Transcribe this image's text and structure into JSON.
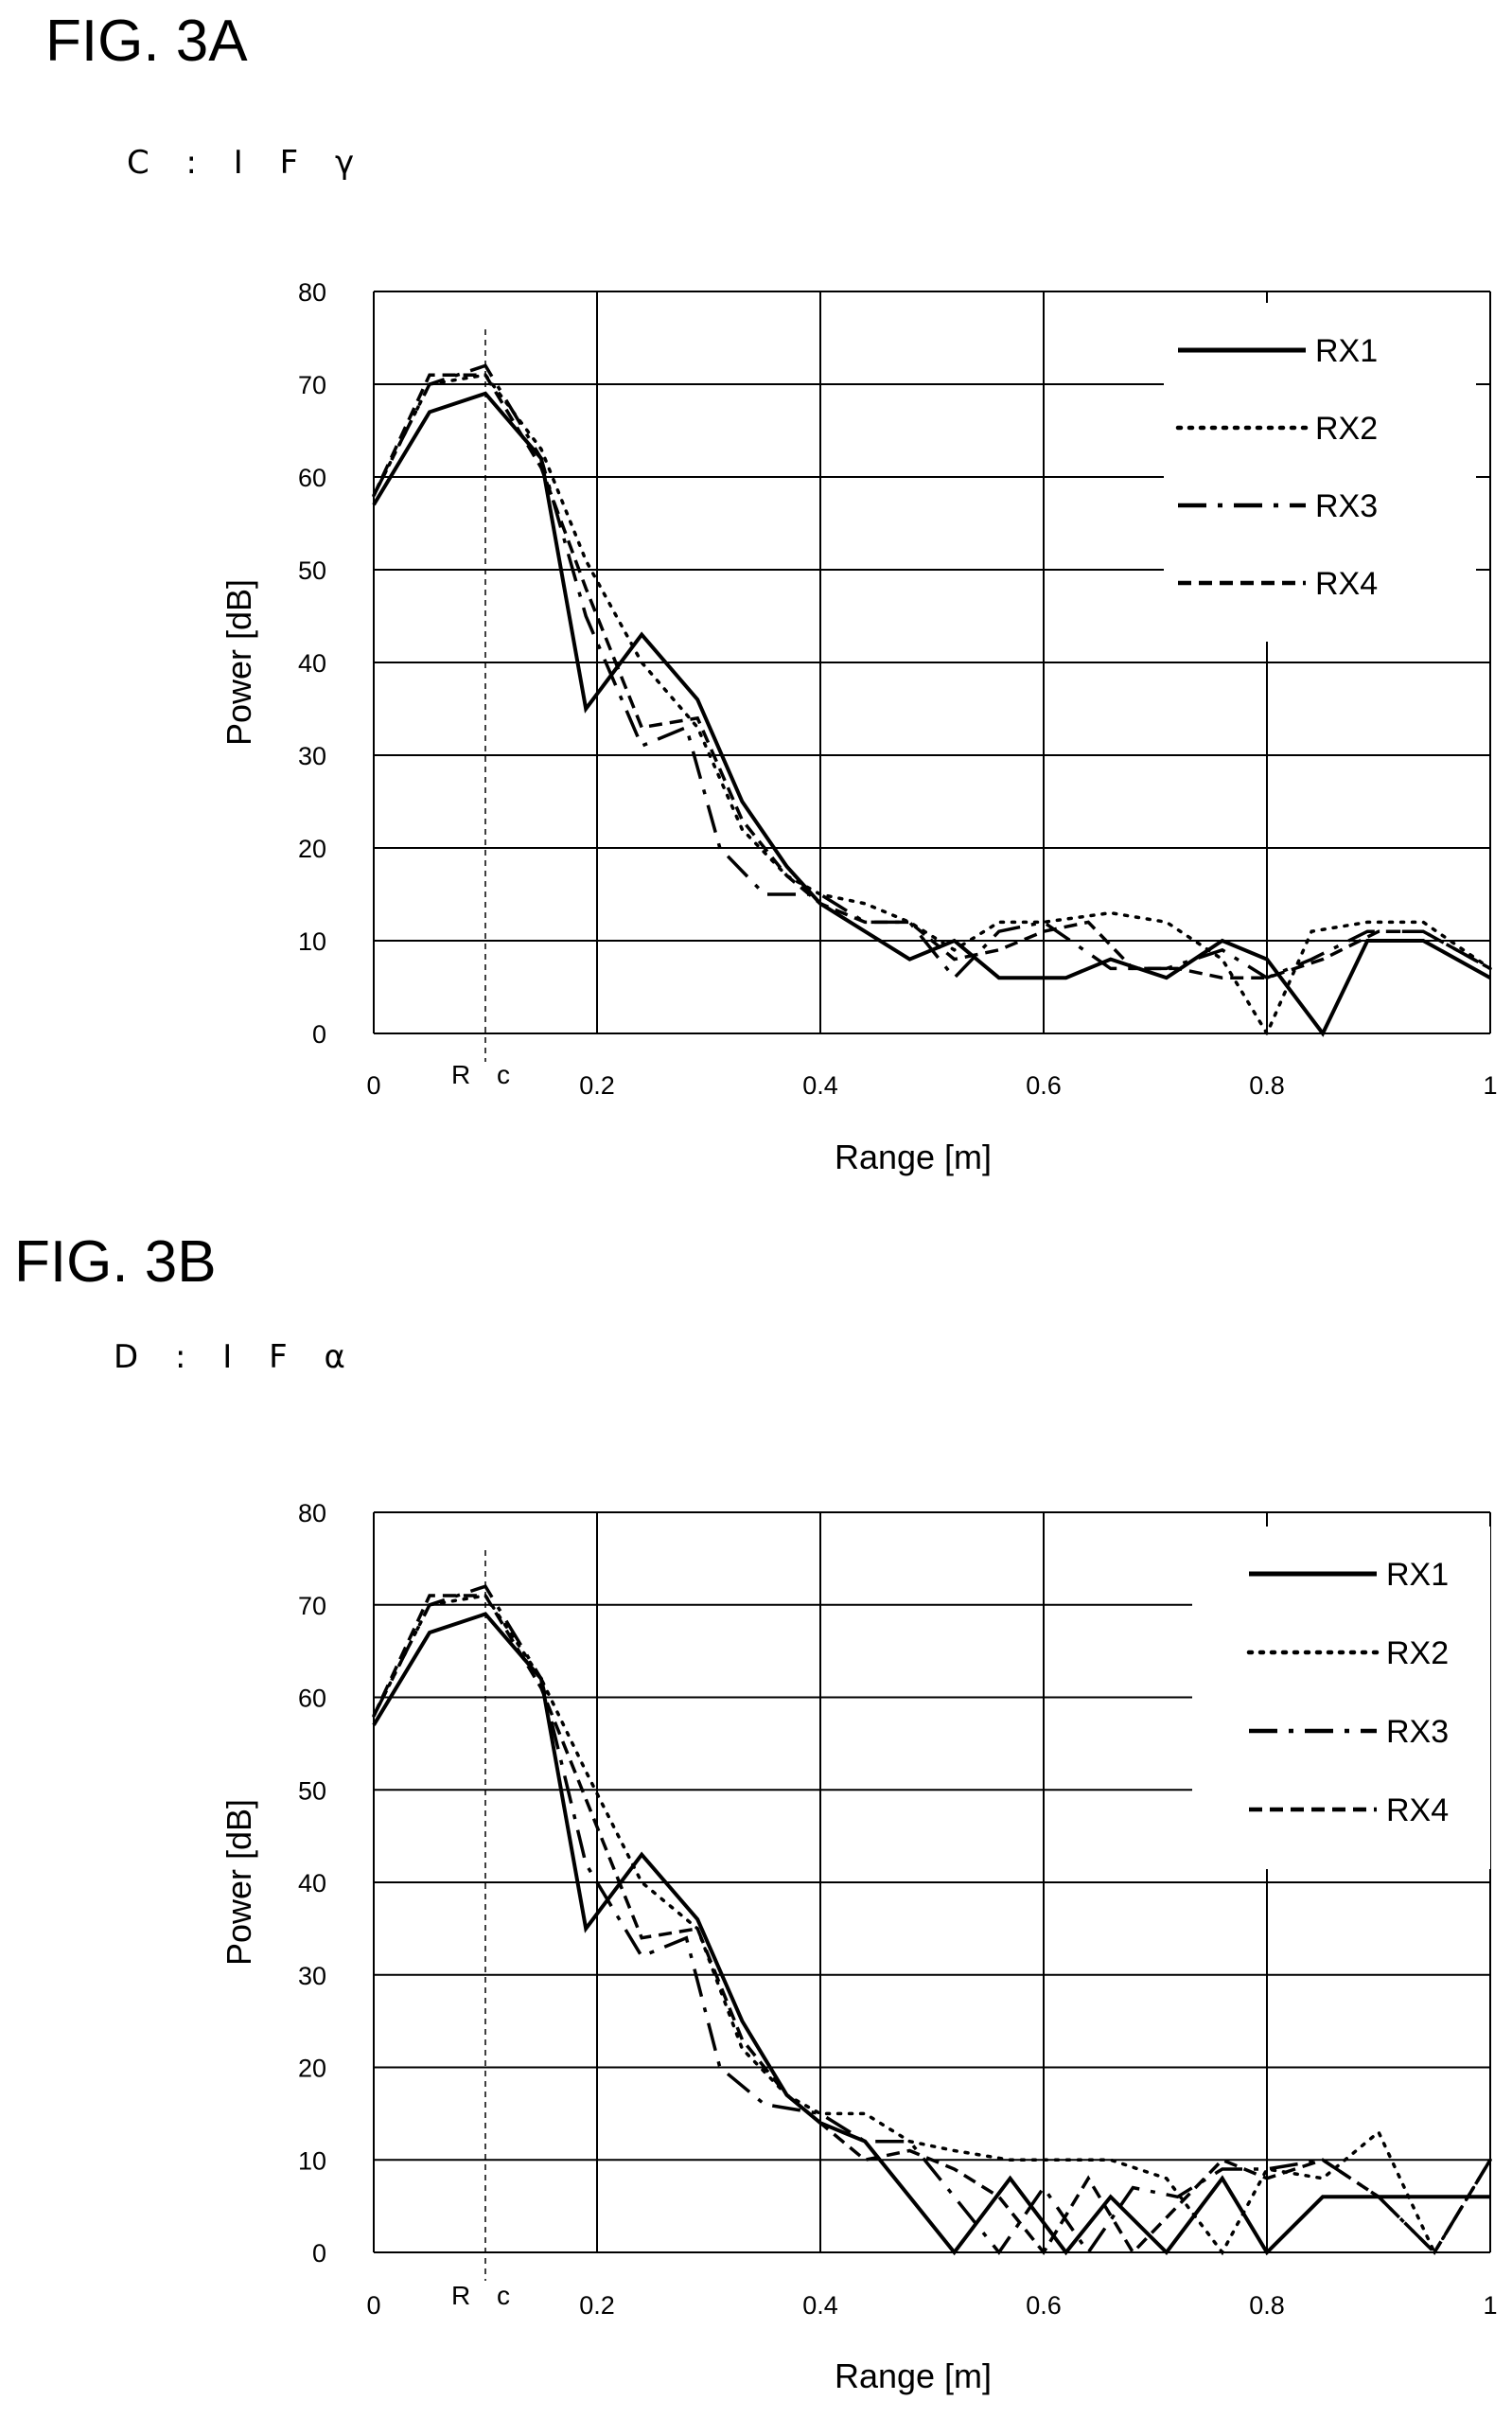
{
  "figures": [
    {
      "title": "FIG. 3A",
      "subtitle": "C : I F γ",
      "chart_data": {
        "type": "line",
        "xlabel": "Range [m]",
        "ylabel": "Power [dB]",
        "xlim": [
          0,
          1
        ],
        "ylim": [
          0,
          80
        ],
        "x_ticks": [
          "0",
          "0.2",
          "0.4",
          "0.6",
          "0.8",
          "1"
        ],
        "y_ticks": [
          "0",
          "10",
          "20",
          "30",
          "40",
          "50",
          "60",
          "70",
          "80"
        ],
        "annotation": "R c",
        "annotation_x": 0.1,
        "legend_position": "top-right",
        "grid": true,
        "series": [
          {
            "name": "RX1",
            "style": "solid",
            "x": [
              0,
              0.05,
              0.1,
              0.15,
              0.19,
              0.24,
              0.29,
              0.33,
              0.37,
              0.4,
              0.44,
              0.48,
              0.52,
              0.56,
              0.62,
              0.66,
              0.71,
              0.76,
              0.8,
              0.85,
              0.89,
              0.94,
              1.0
            ],
            "y": [
              57,
              67,
              69,
              62,
              35,
              43,
              36,
              25,
              18,
              14,
              11,
              8,
              10,
              6,
              6,
              8,
              6,
              10,
              8,
              0,
              10,
              10,
              6
            ]
          },
          {
            "name": "RX2",
            "style": "dotted",
            "x": [
              0,
              0.05,
              0.1,
              0.15,
              0.19,
              0.24,
              0.29,
              0.33,
              0.37,
              0.4,
              0.44,
              0.48,
              0.52,
              0.56,
              0.6,
              0.66,
              0.71,
              0.76,
              0.8,
              0.84,
              0.89,
              0.94,
              1.0
            ],
            "y": [
              58,
              70,
              71,
              63,
              51,
              40,
              33,
              22,
              17,
              15,
              14,
              12,
              9,
              12,
              12,
              13,
              12,
              8,
              0,
              11,
              12,
              12,
              7
            ]
          },
          {
            "name": "RX3",
            "style": "dashdot",
            "x": [
              0,
              0.05,
              0.1,
              0.15,
              0.19,
              0.24,
              0.28,
              0.31,
              0.35,
              0.4,
              0.44,
              0.48,
              0.52,
              0.56,
              0.6,
              0.66,
              0.71,
              0.76,
              0.8,
              0.84,
              0.89,
              0.94,
              1.0
            ],
            "y": [
              58,
              70,
              72,
              62,
              45,
              31,
              33,
              20,
              15,
              15,
              12,
              12,
              6,
              11,
              12,
              7,
              7,
              9,
              6,
              8,
              11,
              11,
              7
            ]
          },
          {
            "name": "RX4",
            "style": "dashed",
            "x": [
              0,
              0.05,
              0.1,
              0.15,
              0.19,
              0.24,
              0.29,
              0.33,
              0.37,
              0.4,
              0.44,
              0.48,
              0.52,
              0.56,
              0.6,
              0.64,
              0.68,
              0.72,
              0.76,
              0.8,
              0.85,
              0.9,
              0.94,
              1.0
            ],
            "y": [
              58,
              71,
              71,
              61,
              48,
              33,
              34,
              23,
              17,
              14,
              12,
              12,
              8,
              9,
              11,
              12,
              7,
              7,
              6,
              6,
              8,
              11,
              11,
              7
            ]
          }
        ]
      }
    },
    {
      "title": "FIG. 3B",
      "subtitle": "D : I F α",
      "chart_data": {
        "type": "line",
        "xlabel": "Range [m]",
        "ylabel": "Power [dB]",
        "xlim": [
          0,
          1
        ],
        "ylim": [
          0,
          80
        ],
        "x_ticks": [
          "0",
          "0.2",
          "0.4",
          "0.6",
          "0.8",
          "1"
        ],
        "y_ticks": [
          "0",
          "10",
          "20",
          "30",
          "40",
          "50",
          "60",
          "70",
          "80"
        ],
        "annotation": "R c",
        "annotation_x": 0.1,
        "legend_position": "top-right",
        "grid": true,
        "series": [
          {
            "name": "RX1",
            "style": "solid",
            "x": [
              0,
              0.05,
              0.1,
              0.15,
              0.19,
              0.24,
              0.29,
              0.33,
              0.37,
              0.4,
              0.44,
              0.48,
              0.52,
              0.57,
              0.62,
              0.66,
              0.71,
              0.76,
              0.8,
              0.85,
              0.9,
              0.95,
              1.0
            ],
            "y": [
              57,
              67,
              69,
              62,
              35,
              43,
              36,
              25,
              17,
              14,
              12,
              6,
              0,
              8,
              0,
              6,
              0,
              8,
              0,
              6,
              6,
              6,
              6
            ]
          },
          {
            "name": "RX2",
            "style": "dotted",
            "x": [
              0,
              0.05,
              0.1,
              0.15,
              0.19,
              0.24,
              0.29,
              0.33,
              0.37,
              0.4,
              0.44,
              0.48,
              0.52,
              0.57,
              0.62,
              0.66,
              0.71,
              0.76,
              0.8,
              0.85,
              0.9,
              0.95,
              1.0
            ],
            "y": [
              58,
              70,
              71,
              62,
              52,
              40,
              35,
              22,
              17,
              15,
              15,
              12,
              11,
              10,
              10,
              10,
              8,
              0,
              9,
              8,
              13,
              0,
              10
            ]
          },
          {
            "name": "RX3",
            "style": "dashdot",
            "x": [
              0,
              0.05,
              0.1,
              0.15,
              0.19,
              0.24,
              0.28,
              0.31,
              0.35,
              0.4,
              0.44,
              0.48,
              0.52,
              0.56,
              0.6,
              0.64,
              0.68,
              0.72,
              0.76,
              0.8,
              0.85,
              0.9,
              0.95,
              1.0
            ],
            "y": [
              58,
              70,
              72,
              62,
              42,
              32,
              34,
              20,
              16,
              15,
              12,
              12,
              6,
              0,
              7,
              0,
              7,
              6,
              9,
              9,
              10,
              6,
              0,
              10
            ]
          },
          {
            "name": "RX4",
            "style": "dashed",
            "x": [
              0,
              0.05,
              0.1,
              0.15,
              0.19,
              0.24,
              0.29,
              0.33,
              0.37,
              0.4,
              0.44,
              0.48,
              0.52,
              0.56,
              0.6,
              0.64,
              0.68,
              0.72,
              0.76,
              0.8,
              0.85,
              0.9,
              0.95,
              1.0
            ],
            "y": [
              58,
              71,
              71,
              61,
              49,
              34,
              35,
              23,
              17,
              14,
              10,
              11,
              9,
              6,
              0,
              8,
              0,
              5,
              10,
              8,
              10,
              6,
              0,
              10
            ]
          }
        ]
      }
    }
  ]
}
